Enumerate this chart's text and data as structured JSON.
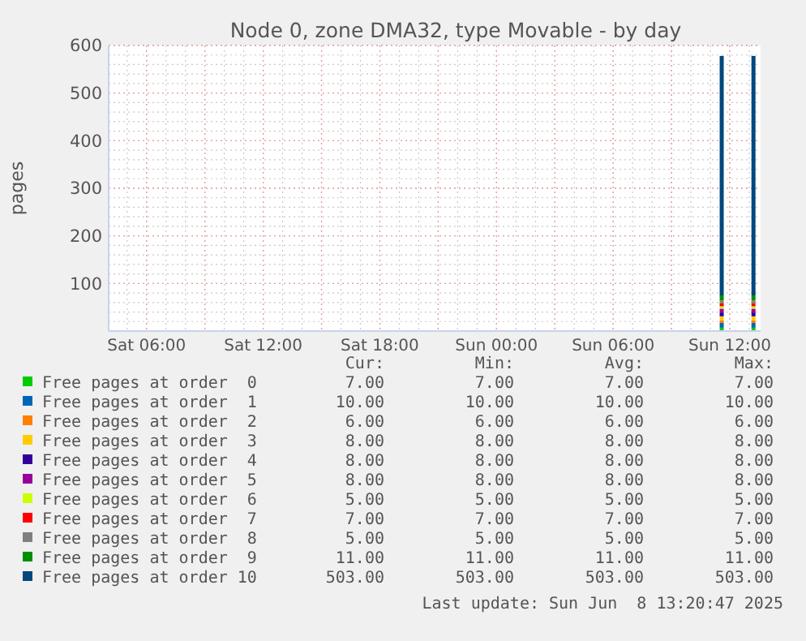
{
  "chart_data": {
    "type": "bar",
    "title": "Node 0, zone DMA32, type Movable - by day",
    "ylabel": "pages",
    "stacked": true,
    "grid": true,
    "legend": "bottom",
    "x": [
      "2025-06-08T11:35",
      "2025-06-08T13:13"
    ],
    "xlim": [
      "2025-06-07T04:03",
      "2025-06-08T13:35"
    ],
    "xticks": [
      {
        "value": "2025-06-07T06:00",
        "label": "Sat 06:00"
      },
      {
        "value": "2025-06-07T12:00",
        "label": "Sat 12:00"
      },
      {
        "value": "2025-06-07T18:00",
        "label": "Sat 18:00"
      },
      {
        "value": "2025-06-08T00:00",
        "label": "Sun 00:00"
      },
      {
        "value": "2025-06-08T06:00",
        "label": "Sun 06:00"
      },
      {
        "value": "2025-06-08T12:00",
        "label": "Sun 12:00"
      }
    ],
    "ylim": [
      0,
      600
    ],
    "yticks": [
      100,
      200,
      300,
      400,
      500,
      600
    ],
    "series": [
      {
        "name": "Free pages at order  0",
        "color": "#00cc00",
        "values": [
          7,
          7
        ]
      },
      {
        "name": "Free pages at order  1",
        "color": "#0066b3",
        "values": [
          10,
          10
        ]
      },
      {
        "name": "Free pages at order  2",
        "color": "#ff8000",
        "values": [
          6,
          6
        ]
      },
      {
        "name": "Free pages at order  3",
        "color": "#ffcc00",
        "values": [
          8,
          8
        ]
      },
      {
        "name": "Free pages at order  4",
        "color": "#330099",
        "values": [
          8,
          8
        ]
      },
      {
        "name": "Free pages at order  5",
        "color": "#990099",
        "values": [
          8,
          8
        ]
      },
      {
        "name": "Free pages at order  6",
        "color": "#ccff00",
        "values": [
          5,
          5
        ]
      },
      {
        "name": "Free pages at order  7",
        "color": "#ff0000",
        "values": [
          7,
          7
        ]
      },
      {
        "name": "Free pages at order  8",
        "color": "#808080",
        "values": [
          5,
          5
        ]
      },
      {
        "name": "Free pages at order  9",
        "color": "#008f00",
        "values": [
          11,
          11
        ]
      },
      {
        "name": "Free pages at order 10",
        "color": "#00487d",
        "values": [
          503,
          503
        ]
      }
    ],
    "annotations": [
      "Cur:",
      "Min:",
      "Avg:",
      "Max:",
      "7.00",
      "7.00",
      "7.00",
      "7.00",
      "10.00",
      "10.00",
      "10.00",
      "10.00",
      "6.00",
      "6.00",
      "6.00",
      "6.00",
      "8.00",
      "8.00",
      "8.00",
      "8.00",
      "8.00",
      "8.00",
      "8.00",
      "8.00",
      "8.00",
      "8.00",
      "8.00",
      "8.00",
      "5.00",
      "5.00",
      "5.00",
      "5.00",
      "7.00",
      "7.00",
      "7.00",
      "7.00",
      "5.00",
      "5.00",
      "5.00",
      "5.00",
      "11.00",
      "11.00",
      "11.00",
      "11.00",
      "503.00",
      "503.00",
      "503.00",
      "503.00",
      "Last update: Sun Jun  8 13:20:47 2025"
    ]
  }
}
